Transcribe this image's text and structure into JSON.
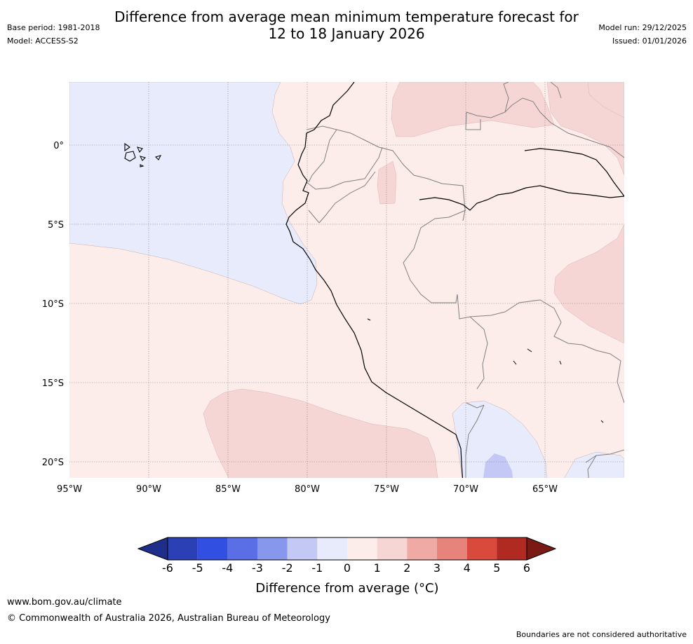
{
  "header": {
    "title_line1": "Difference from average mean minimum temperature forecast for",
    "title_line2": "12 to 18 January 2026",
    "base_period": "Base period: 1981-2018",
    "model": "Model: ACCESS-S2",
    "model_run": "Model run: 29/12/2025",
    "issued": "Issued: 01/01/2026"
  },
  "map": {
    "lat_labels": [
      "0°",
      "5°S",
      "10°S",
      "15°S",
      "20°S"
    ],
    "lon_labels": [
      "95°W",
      "90°W",
      "85°W",
      "80°W",
      "75°W",
      "70°W",
      "65°W"
    ],
    "region_colors": {
      "neg_0_1": "#e7ebfb",
      "neg_1_2": "#c3c9f4",
      "pos_0_1": "#fcecea",
      "pos_1_2": "#f6d6d4",
      "coast": "#000000",
      "border": "#808080",
      "grid": "#888888"
    }
  },
  "colorbar": {
    "tick_labels": [
      "-6",
      "-5",
      "-4",
      "-3",
      "-2",
      "-1",
      "0",
      "1",
      "2",
      "3",
      "4",
      "5",
      "6"
    ],
    "colors": [
      "#1f2e8a",
      "#2a40b4",
      "#3150e2",
      "#5a6fe6",
      "#8797ec",
      "#c3c9f4",
      "#e7ebfb",
      "#fcecea",
      "#f6d6d4",
      "#efaaa5",
      "#e6847c",
      "#d94a3d",
      "#b02a22",
      "#7a1a14"
    ],
    "label": "Difference from average (°C)"
  },
  "footer": {
    "url": "www.bom.gov.au/climate",
    "copyright": "© Commonwealth of Australia 2026, Australian Bureau of Meteorology",
    "disclaimer": "Boundaries are not considered authoritative"
  }
}
